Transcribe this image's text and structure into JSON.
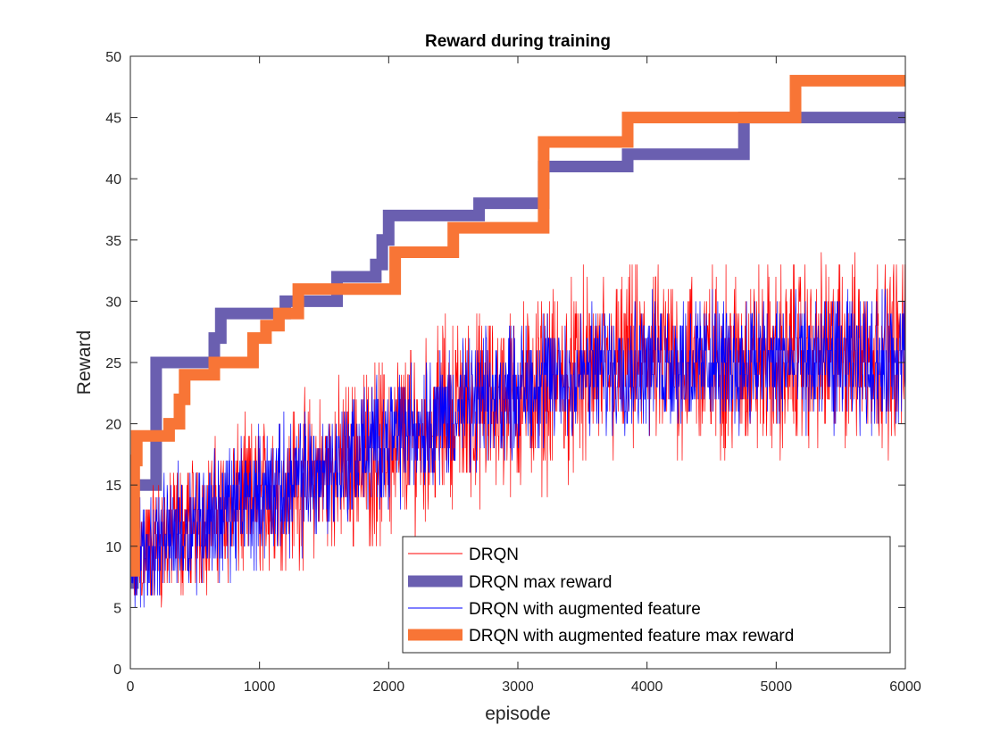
{
  "chart_data": {
    "type": "line",
    "title": "Reward during training",
    "xlabel": "episode",
    "ylabel": "Reward",
    "xlim": [
      0,
      6000
    ],
    "ylim": [
      0,
      50
    ],
    "xticks": [
      0,
      1000,
      2000,
      3000,
      4000,
      5000,
      6000
    ],
    "yticks": [
      0,
      5,
      10,
      15,
      20,
      25,
      30,
      35,
      40,
      45,
      50
    ],
    "grid": false,
    "legend_position": "bottom-right",
    "legend_entries": [
      "DRQN",
      "DRQN max reward",
      "DRQN with augmented feature",
      "DRQN with augmented feature max reward"
    ],
    "series": [
      {
        "name": "DRQN",
        "color": "#ff0000",
        "style": "thin",
        "noisy": true,
        "x": [
          0,
          500,
          1000,
          1500,
          2000,
          2500,
          3000,
          3500,
          4000,
          4500,
          5000,
          5500,
          6000
        ],
        "y": [
          9,
          12,
          14,
          16,
          18,
          21,
          22,
          24,
          25,
          25,
          25,
          26,
          26
        ],
        "spread": [
          5,
          5,
          6,
          6,
          7,
          7,
          7,
          7,
          7,
          7,
          7,
          7,
          7
        ]
      },
      {
        "name": "DRQN max reward",
        "color": "#6a5fb0",
        "style": "thick-step",
        "x": [
          0,
          20,
          200,
          650,
          700,
          1200,
          1600,
          1900,
          1950,
          2000,
          2700,
          3200,
          3850,
          4750,
          6000
        ],
        "y": [
          7,
          15,
          25,
          27,
          29,
          30,
          32,
          33,
          35,
          37,
          38,
          41,
          42,
          45,
          45
        ]
      },
      {
        "name": "DRQN with augmented feature",
        "color": "#0000ff",
        "style": "thin",
        "noisy": true,
        "x": [
          0,
          500,
          1000,
          1500,
          2000,
          2500,
          3000,
          3500,
          4000,
          4500,
          5000,
          5500,
          6000
        ],
        "y": [
          9,
          12,
          14,
          16,
          19,
          21,
          23,
          24,
          25,
          25,
          25,
          25,
          25
        ],
        "spread": [
          4,
          5,
          5,
          5,
          5,
          5,
          5,
          5,
          5,
          5,
          5,
          5,
          5
        ]
      },
      {
        "name": "DRQN with augmented feature max reward",
        "color": "#f87536",
        "style": "thick-step",
        "x": [
          0,
          30,
          50,
          300,
          380,
          420,
          650,
          950,
          1050,
          1150,
          1300,
          2050,
          2150,
          2500,
          3200,
          3850,
          5150,
          6000
        ],
        "y": [
          8,
          17,
          19,
          20,
          22,
          24,
          25,
          27,
          28,
          29,
          31,
          34,
          34,
          36,
          43,
          45,
          48,
          48
        ]
      }
    ]
  }
}
